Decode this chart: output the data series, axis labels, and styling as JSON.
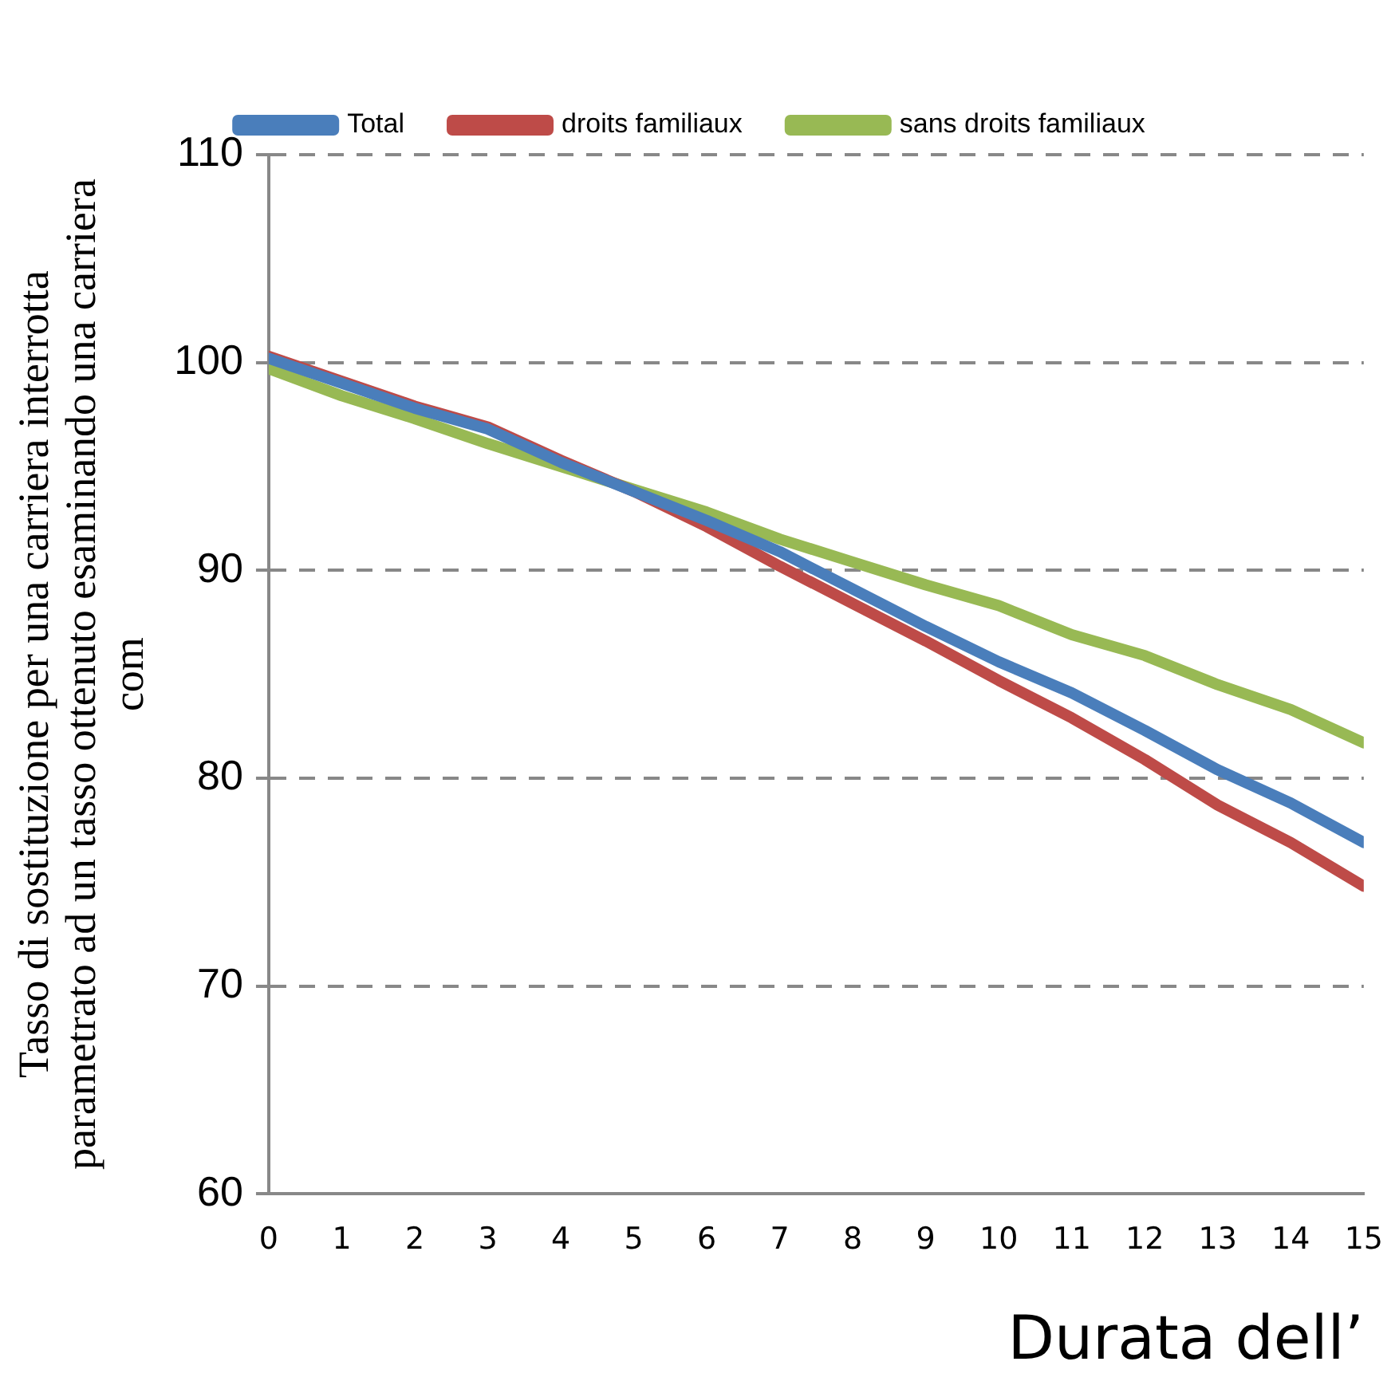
{
  "chart_data": {
    "type": "line",
    "xlabel": "Durata dell’",
    "ylabel": "Tasso di sostituzione per una carriera interrotta\nparametrato ad un tasso ottenuto esaminando una carriera\ncom",
    "x": [
      0,
      1,
      2,
      3,
      4,
      5,
      6,
      7,
      8,
      9,
      10,
      11,
      12,
      13,
      14,
      15
    ],
    "xlim": [
      0,
      15
    ],
    "xticks": [
      0,
      1,
      2,
      3,
      4,
      5,
      6,
      7,
      8,
      9,
      10,
      11,
      12,
      13,
      14,
      15
    ],
    "series": [
      {
        "name": "Total",
        "color": "#4a7ebb",
        "values": [
          100.2,
          99,
          97.8,
          96.8,
          95.2,
          93.8,
          92.4,
          90.9,
          89.1,
          87.3,
          85.6,
          84.1,
          82.3,
          80.4,
          78.8,
          76.9
        ]
      },
      {
        "name": "droits familiaux",
        "color": "#be4b48",
        "values": [
          100.3,
          99.1,
          97.9,
          96.9,
          95.3,
          93.8,
          92.1,
          90.2,
          88.4,
          86.6,
          84.7,
          82.9,
          80.9,
          78.7,
          76.9,
          74.8
        ]
      },
      {
        "name": "sans droits familiaux",
        "color": "#98b954",
        "values": [
          99.7,
          98.4,
          97.3,
          96.1,
          95,
          93.9,
          92.8,
          91.5,
          90.4,
          89.3,
          88.3,
          86.9,
          85.9,
          84.5,
          83.3,
          81.7
        ]
      }
    ],
    "ylim": [
      60,
      110
    ],
    "yticks": [
      60,
      70,
      80,
      90,
      100,
      110
    ],
    "grid": "y",
    "legend": "top",
    "marker": "none",
    "line_style": "solid"
  }
}
